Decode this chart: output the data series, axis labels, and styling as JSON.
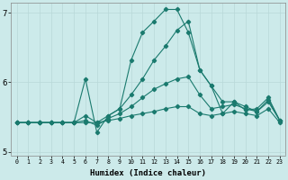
{
  "xlabel": "Humidex (Indice chaleur)",
  "x": [
    0,
    1,
    2,
    3,
    4,
    5,
    6,
    7,
    8,
    9,
    10,
    11,
    12,
    13,
    14,
    15,
    16,
    17,
    18,
    19,
    20,
    21,
    22,
    23
  ],
  "line_main": [
    5.42,
    5.42,
    5.42,
    5.42,
    5.42,
    5.42,
    6.05,
    5.28,
    5.52,
    5.62,
    6.32,
    6.72,
    6.88,
    7.05,
    7.05,
    6.72,
    6.18,
    5.95,
    5.55,
    5.72,
    5.6,
    5.62,
    5.78,
    5.45
  ],
  "line2": [
    5.42,
    5.42,
    5.42,
    5.42,
    5.42,
    5.42,
    5.52,
    5.42,
    5.52,
    5.62,
    5.82,
    6.05,
    6.32,
    6.52,
    6.75,
    6.88,
    6.18,
    5.95,
    5.72,
    5.72,
    5.65,
    5.58,
    5.75,
    5.45
  ],
  "line3": [
    5.42,
    5.42,
    5.42,
    5.42,
    5.42,
    5.42,
    5.45,
    5.38,
    5.48,
    5.55,
    5.65,
    5.78,
    5.9,
    5.98,
    6.05,
    6.08,
    5.82,
    5.62,
    5.65,
    5.68,
    5.62,
    5.58,
    5.72,
    5.45
  ],
  "line_flat": [
    5.42,
    5.42,
    5.42,
    5.42,
    5.42,
    5.42,
    5.42,
    5.42,
    5.45,
    5.48,
    5.52,
    5.55,
    5.58,
    5.62,
    5.65,
    5.65,
    5.55,
    5.52,
    5.55,
    5.58,
    5.55,
    5.52,
    5.62,
    5.42
  ],
  "line_color": "#1a7a6e",
  "bg_color": "#cceaea",
  "grid_color": "#b8d8d8",
  "grid_minor_color": "#c8e4e4",
  "ylim": [
    4.95,
    7.15
  ],
  "yticks": [
    5,
    6,
    7
  ],
  "xlim": [
    -0.5,
    23.5
  ]
}
